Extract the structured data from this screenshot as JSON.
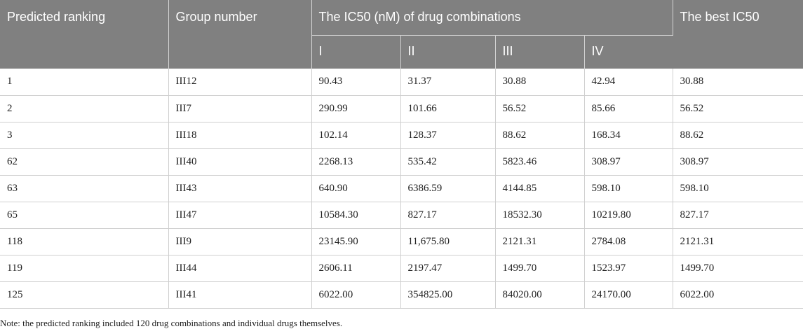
{
  "table": {
    "headers": {
      "predicted_ranking": "Predicted ranking",
      "group_number": "Group number",
      "ic50_group": "The IC50 (nM) of drug combinations",
      "best_ic50": "The best IC50",
      "sub": [
        "I",
        "II",
        "III",
        "IV"
      ]
    },
    "rows": [
      {
        "rank": "1",
        "group": "III12",
        "i": "90.43",
        "ii": "31.37",
        "iii": "30.88",
        "iv": "42.94",
        "best": "30.88"
      },
      {
        "rank": "2",
        "group": "III7",
        "i": "290.99",
        "ii": "101.66",
        "iii": "56.52",
        "iv": "85.66",
        "best": "56.52"
      },
      {
        "rank": "3",
        "group": "III18",
        "i": "102.14",
        "ii": "128.37",
        "iii": "88.62",
        "iv": "168.34",
        "best": "88.62"
      },
      {
        "rank": "62",
        "group": "III40",
        "i": "2268.13",
        "ii": "535.42",
        "iii": "5823.46",
        "iv": "308.97",
        "best": "308.97"
      },
      {
        "rank": "63",
        "group": "III43",
        "i": "640.90",
        "ii": "6386.59",
        "iii": "4144.85",
        "iv": "598.10",
        "best": "598.10"
      },
      {
        "rank": "65",
        "group": "III47",
        "i": "10584.30",
        "ii": "827.17",
        "iii": "18532.30",
        "iv": "10219.80",
        "best": "827.17"
      },
      {
        "rank": "118",
        "group": "III9",
        "i": "23145.90",
        "ii": "11,675.80",
        "iii": "2121.31",
        "iv": "2784.08",
        "best": "2121.31"
      },
      {
        "rank": "119",
        "group": "III44",
        "i": "2606.11",
        "ii": "2197.47",
        "iii": "1499.70",
        "iv": "1523.97",
        "best": "1499.70"
      },
      {
        "rank": "125",
        "group": "III41",
        "i": "6022.00",
        "ii": "354825.00",
        "iii": "84020.00",
        "iv": "24170.00",
        "best": "6022.00"
      }
    ]
  },
  "note": "Note: the predicted ranking included 120 drug combinations and individual drugs themselves."
}
